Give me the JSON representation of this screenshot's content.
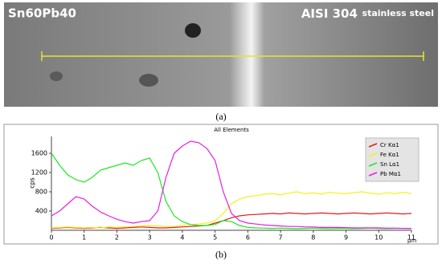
{
  "image_labels": {
    "left": "Sn60Pb40",
    "right_main": "AISI 304",
    "right_sub": "stainless steel"
  },
  "captions": [
    "(a)",
    "(b)"
  ],
  "chart_data": {
    "type": "line",
    "title": "All Elements",
    "y_label": "cps",
    "x_unit": "µm",
    "x": [
      0,
      0.25,
      0.5,
      0.75,
      1,
      1.25,
      1.5,
      1.75,
      2,
      2.25,
      2.5,
      2.75,
      3,
      3.25,
      3.5,
      3.75,
      4,
      4.25,
      4.5,
      4.75,
      5,
      5.25,
      5.5,
      5.75,
      6,
      6.25,
      6.5,
      6.75,
      7,
      7.25,
      7.5,
      7.75,
      8,
      8.25,
      8.5,
      8.75,
      9,
      9.25,
      9.5,
      9.75,
      10,
      10.25,
      10.5,
      10.75,
      11
    ],
    "series": [
      {
        "name": "Cr Kα1",
        "color": "#e8191c",
        "values": [
          40,
          50,
          60,
          50,
          40,
          50,
          60,
          50,
          40,
          50,
          60,
          70,
          60,
          50,
          50,
          60,
          70,
          80,
          90,
          100,
          150,
          200,
          260,
          300,
          320,
          330,
          340,
          350,
          340,
          360,
          350,
          340,
          350,
          360,
          350,
          340,
          350,
          360,
          350,
          340,
          350,
          360,
          350,
          340,
          350
        ]
      },
      {
        "name": "Fe Kα1",
        "color": "#f2f21a",
        "values": [
          50,
          60,
          70,
          60,
          50,
          60,
          50,
          70,
          60,
          70,
          80,
          90,
          100,
          90,
          80,
          80,
          100,
          120,
          130,
          150,
          200,
          350,
          550,
          650,
          700,
          720,
          750,
          760,
          740,
          770,
          800,
          760,
          780,
          750,
          790,
          770,
          760,
          780,
          800,
          770,
          750,
          780,
          760,
          790,
          760
        ]
      },
      {
        "name": "Sn Lα1",
        "color": "#1ee81e",
        "values": [
          1600,
          1350,
          1150,
          1050,
          1000,
          1100,
          1250,
          1300,
          1350,
          1400,
          1350,
          1450,
          1500,
          1200,
          600,
          300,
          180,
          120,
          100,
          100,
          120,
          200,
          180,
          100,
          60,
          50,
          45,
          40,
          45,
          40,
          35,
          40,
          45,
          40,
          35,
          40,
          40,
          35,
          40,
          45,
          40,
          35,
          40,
          40,
          35
        ]
      },
      {
        "name": "Pb Mα1",
        "color": "#e61ee6",
        "values": [
          300,
          400,
          550,
          700,
          650,
          500,
          380,
          300,
          230,
          180,
          150,
          180,
          200,
          400,
          1100,
          1600,
          1750,
          1850,
          1820,
          1700,
          1450,
          800,
          350,
          200,
          150,
          130,
          110,
          100,
          90,
          80,
          80,
          70,
          70,
          60,
          60,
          60,
          55,
          50,
          50,
          50,
          50,
          45,
          45,
          40,
          40
        ]
      }
    ],
    "xlim": [
      0,
      11
    ],
    "xticks": [
      0,
      1,
      2,
      3,
      4,
      5,
      6,
      7,
      8,
      9,
      10,
      11
    ],
    "ylim": [
      0,
      1950
    ],
    "yticks": [
      400,
      800,
      1200,
      1600
    ],
    "legend": "upper right"
  }
}
